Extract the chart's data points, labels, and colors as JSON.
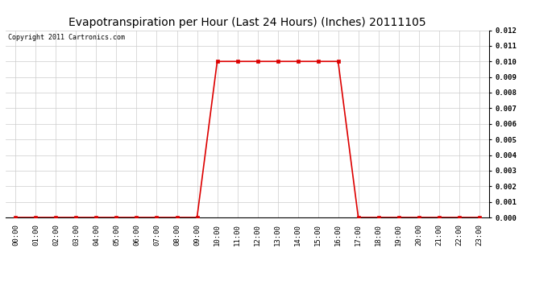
{
  "title": "Evapotranspiration per Hour (Last 24 Hours) (Inches) 20111105",
  "copyright_text": "Copyright 2011 Cartronics.com",
  "hours": [
    "00:00",
    "01:00",
    "02:00",
    "03:00",
    "04:00",
    "05:00",
    "06:00",
    "07:00",
    "08:00",
    "09:00",
    "10:00",
    "11:00",
    "12:00",
    "13:00",
    "14:00",
    "15:00",
    "16:00",
    "17:00",
    "18:00",
    "19:00",
    "20:00",
    "21:00",
    "22:00",
    "23:00"
  ],
  "values": [
    0.0,
    0.0,
    0.0,
    0.0,
    0.0,
    0.0,
    0.0,
    0.0,
    0.0,
    0.0,
    0.01,
    0.01,
    0.01,
    0.01,
    0.01,
    0.01,
    0.01,
    0.0,
    0.0,
    0.0,
    0.0,
    0.0,
    0.0,
    0.0
  ],
  "line_color": "#dd0000",
  "marker": "s",
  "marker_size": 2.5,
  "marker_color": "#dd0000",
  "ylim": [
    0,
    0.012
  ],
  "yticks": [
    0.0,
    0.001,
    0.002,
    0.003,
    0.004,
    0.005,
    0.006,
    0.007,
    0.008,
    0.009,
    0.01,
    0.011,
    0.012
  ],
  "grid_color": "#cccccc",
  "bg_color": "#ffffff",
  "title_fontsize": 10,
  "copyright_fontsize": 6,
  "tick_fontsize": 6.5,
  "line_width": 1.2
}
